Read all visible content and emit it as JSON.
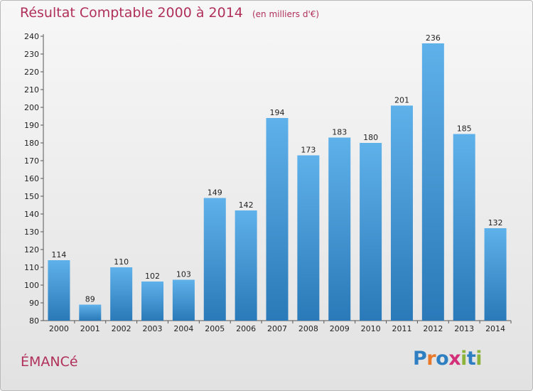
{
  "title": {
    "main": "Résultat Comptable 2000 à 2014",
    "sub": "(en milliers d'€)"
  },
  "commune": "ÉMANCé",
  "logo": {
    "letters": [
      "P",
      "r",
      "o",
      "x",
      "i",
      "t",
      "i"
    ],
    "colors": [
      "#2e7fc2",
      "#e8782a",
      "#2e7fc2",
      "#d4307a",
      "#8cb43b",
      "#2e7fc2",
      "#8cb43b"
    ]
  },
  "colors": {
    "bar_top": "#5fb1ea",
    "bar_bottom": "#2a79b8",
    "title": "#b0305a"
  },
  "chart_data": {
    "type": "bar",
    "title": "Résultat Comptable 2000 à 2014",
    "subtitle": "(en milliers d'€)",
    "xlabel": "",
    "ylabel": "",
    "categories": [
      "2000",
      "2001",
      "2002",
      "2003",
      "2004",
      "2005",
      "2006",
      "2007",
      "2008",
      "2009",
      "2010",
      "2011",
      "2012",
      "2013",
      "2014"
    ],
    "values": [
      114,
      89,
      110,
      102,
      103,
      149,
      142,
      194,
      173,
      183,
      180,
      201,
      236,
      185,
      132
    ],
    "ylim": [
      80,
      240
    ],
    "yticks": [
      80,
      90,
      100,
      110,
      120,
      130,
      140,
      150,
      160,
      170,
      180,
      190,
      200,
      210,
      220,
      230,
      240
    ],
    "grid": false,
    "legend": "none",
    "data_labels": true
  }
}
